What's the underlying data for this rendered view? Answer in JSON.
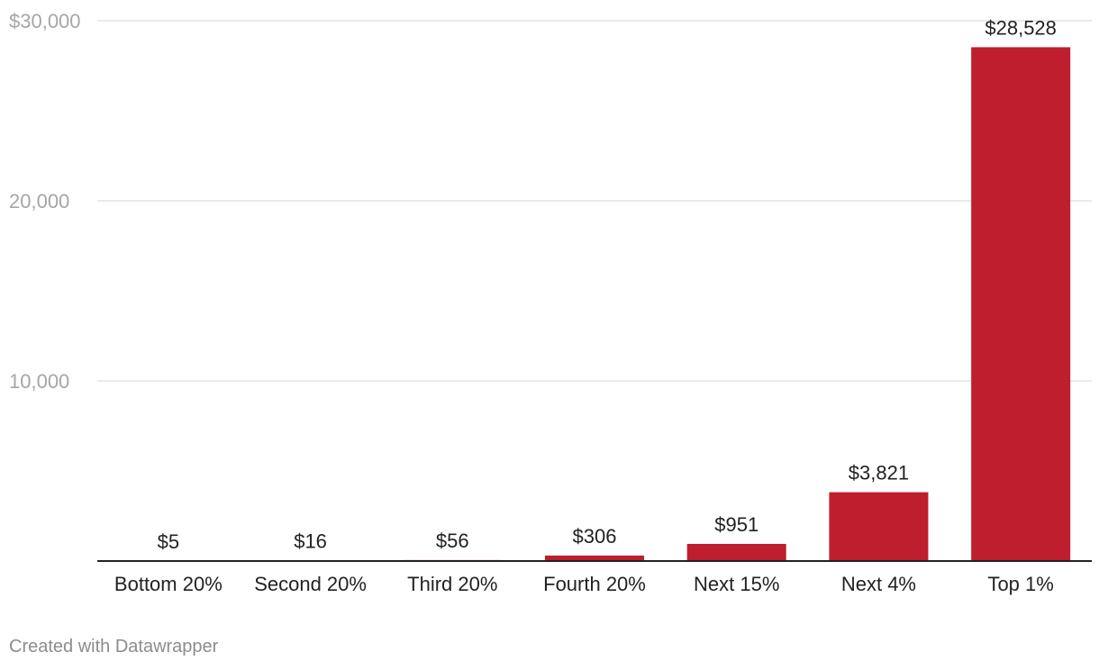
{
  "chart_data": {
    "type": "bar",
    "categories": [
      "Bottom 20%",
      "Second 20%",
      "Third 20%",
      "Fourth 20%",
      "Next 15%",
      "Next 4%",
      "Top 1%"
    ],
    "values": [
      5,
      16,
      56,
      306,
      951,
      3821,
      28528
    ],
    "value_labels": [
      "$5",
      "$16",
      "$56",
      "$306",
      "$951",
      "$3,821",
      "$28,528"
    ],
    "y_ticks": [
      {
        "value": 30000,
        "label": "$30,000"
      },
      {
        "value": 20000,
        "label": "20,000"
      },
      {
        "value": 10000,
        "label": "10,000"
      }
    ],
    "ylim": [
      0,
      30000
    ],
    "grid": true,
    "legend": "none",
    "bar_color": "#be1e2d",
    "title": "",
    "xlabel": "",
    "ylabel": ""
  },
  "footer": {
    "credit": "Created with Datawrapper"
  }
}
